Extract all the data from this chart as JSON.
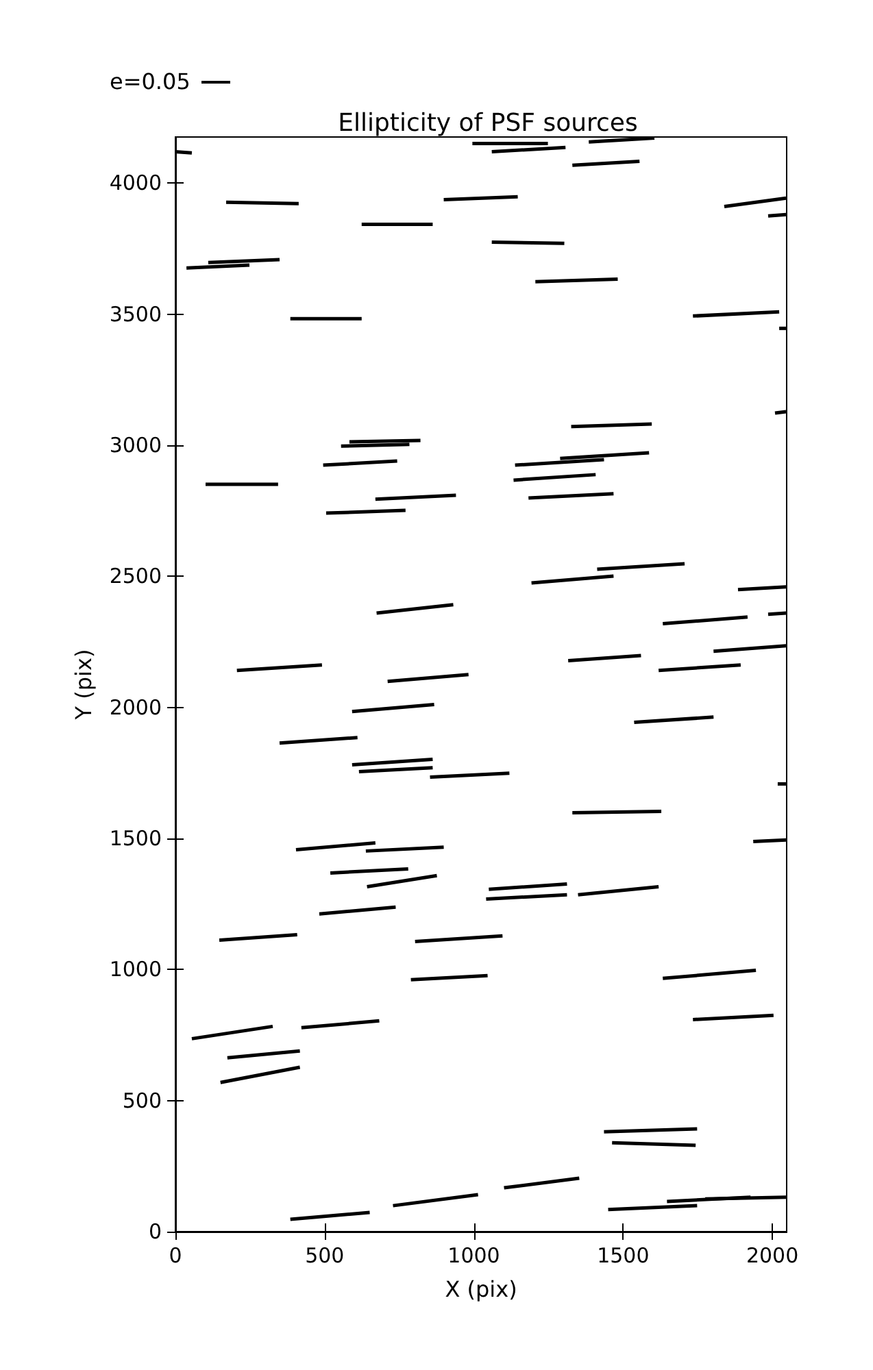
{
  "chart_data": {
    "type": "line",
    "title": "Ellipticity of PSF sources",
    "xlabel": "X (pix)",
    "ylabel": "Y (pix)",
    "annotations": [
      "e=0.05"
    ],
    "xlim": [
      0,
      2048
    ],
    "ylim": [
      0,
      4176
    ],
    "xticks": [
      0,
      500,
      1000,
      1500,
      2000
    ],
    "yticks": [
      0,
      500,
      1000,
      1500,
      2000,
      2500,
      3000,
      3500,
      4000
    ],
    "grid": false,
    "marker": "none",
    "line_style": "solid",
    "series": [
      {
        "color": "#000000",
        "x": [
          0,
          55
        ],
        "values": [
          4120,
          4115
        ]
      },
      {
        "color": "#000000",
        "x": [
          170,
          413
        ],
        "values": [
          3927,
          3922
        ]
      },
      {
        "color": "#000000",
        "x": [
          110,
          349
        ],
        "values": [
          3697,
          3708
        ]
      },
      {
        "color": "#000000",
        "x": [
          37,
          248
        ],
        "values": [
          3676,
          3687
        ]
      },
      {
        "color": "#000000",
        "x": [
          385,
          624
        ],
        "values": [
          3483,
          3483
        ]
      },
      {
        "color": "#000000",
        "x": [
          899,
          1147
        ],
        "values": [
          3937,
          3948
        ]
      },
      {
        "color": "#000000",
        "x": [
          624,
          862
        ],
        "values": [
          3843,
          3843
        ]
      },
      {
        "color": "#000000",
        "x": [
          995,
          1248
        ],
        "values": [
          4151,
          4151
        ]
      },
      {
        "color": "#000000",
        "x": [
          1060,
          1307
        ],
        "values": [
          4120,
          4136
        ]
      },
      {
        "color": "#000000",
        "x": [
          1385,
          1605
        ],
        "values": [
          4157,
          4172
        ]
      },
      {
        "color": "#000000",
        "x": [
          1330,
          1555
        ],
        "values": [
          4068,
          4083
        ]
      },
      {
        "color": "#000000",
        "x": [
          1060,
          1303
        ],
        "values": [
          3775,
          3770
        ]
      },
      {
        "color": "#000000",
        "x": [
          1206,
          1482
        ],
        "values": [
          3624,
          3634
        ]
      },
      {
        "color": "#000000",
        "x": [
          1839,
          2046
        ],
        "values": [
          3911,
          3943
        ]
      },
      {
        "color": "#000000",
        "x": [
          1986,
          2046
        ],
        "values": [
          3875,
          3880
        ]
      },
      {
        "color": "#000000",
        "x": [
          1734,
          2023
        ],
        "values": [
          3493,
          3509
        ]
      },
      {
        "color": "#000000",
        "x": [
          2023,
          2046
        ],
        "values": [
          3446,
          3446
        ]
      },
      {
        "color": "#000000",
        "x": [
          2009,
          2046
        ],
        "values": [
          3123,
          3128
        ]
      },
      {
        "color": "#000000",
        "x": [
          1326,
          1596
        ],
        "values": [
          3071,
          3081
        ]
      },
      {
        "color": "#000000",
        "x": [
          583,
          821
        ],
        "values": [
          3013,
          3018
        ]
      },
      {
        "color": "#000000",
        "x": [
          555,
          784
        ],
        "values": [
          2997,
          3003
        ]
      },
      {
        "color": "#000000",
        "x": [
          495,
          743
        ],
        "values": [
          2924,
          2940
        ]
      },
      {
        "color": "#000000",
        "x": [
          1138,
          1436
        ],
        "values": [
          2924,
          2945
        ]
      },
      {
        "color": "#000000",
        "x": [
          1289,
          1587
        ],
        "values": [
          2950,
          2971
        ]
      },
      {
        "color": "#000000",
        "x": [
          1133,
          1408
        ],
        "values": [
          2867,
          2888
        ]
      },
      {
        "color": "#000000",
        "x": [
          1183,
          1468
        ],
        "values": [
          2799,
          2815
        ]
      },
      {
        "color": "#000000",
        "x": [
          101,
          344
        ],
        "values": [
          2851,
          2851
        ]
      },
      {
        "color": "#000000",
        "x": [
          670,
          940
        ],
        "values": [
          2794,
          2809
        ]
      },
      {
        "color": "#000000",
        "x": [
          505,
          771
        ],
        "values": [
          2741,
          2752
        ]
      },
      {
        "color": "#000000",
        "x": [
          1413,
          1706
        ],
        "values": [
          2527,
          2548
        ]
      },
      {
        "color": "#000000",
        "x": [
          1193,
          1468
        ],
        "values": [
          2475,
          2501
        ]
      },
      {
        "color": "#000000",
        "x": [
          1885,
          2046
        ],
        "values": [
          2449,
          2460
        ]
      },
      {
        "color": "#000000",
        "x": [
          674,
          931
        ],
        "values": [
          2360,
          2392
        ]
      },
      {
        "color": "#000000",
        "x": [
          1986,
          2046
        ],
        "values": [
          2355,
          2360
        ]
      },
      {
        "color": "#000000",
        "x": [
          1633,
          1917
        ],
        "values": [
          2319,
          2345
        ]
      },
      {
        "color": "#000000",
        "x": [
          1316,
          1560
        ],
        "values": [
          2178,
          2198
        ]
      },
      {
        "color": "#000000",
        "x": [
          1803,
          2046
        ],
        "values": [
          2214,
          2235
        ]
      },
      {
        "color": "#000000",
        "x": [
          1619,
          1894
        ],
        "values": [
          2141,
          2162
        ]
      },
      {
        "color": "#000000",
        "x": [
          206,
          491
        ],
        "values": [
          2141,
          2162
        ]
      },
      {
        "color": "#000000",
        "x": [
          711,
          982
        ],
        "values": [
          2099,
          2125
        ]
      },
      {
        "color": "#000000",
        "x": [
          592,
          867
        ],
        "values": [
          1984,
          2011
        ]
      },
      {
        "color": "#000000",
        "x": [
          1537,
          1803
        ],
        "values": [
          1943,
          1963
        ]
      },
      {
        "color": "#000000",
        "x": [
          349,
          610
        ],
        "values": [
          1864,
          1885
        ]
      },
      {
        "color": "#000000",
        "x": [
          592,
          862
        ],
        "values": [
          1781,
          1802
        ]
      },
      {
        "color": "#000000",
        "x": [
          615,
          862
        ],
        "values": [
          1755,
          1770
        ]
      },
      {
        "color": "#000000",
        "x": [
          853,
          1119
        ],
        "values": [
          1734,
          1749
        ]
      },
      {
        "color": "#000000",
        "x": [
          2018,
          2046
        ],
        "values": [
          1708,
          1708
        ]
      },
      {
        "color": "#000000",
        "x": [
          1330,
          1628
        ],
        "values": [
          1598,
          1603
        ]
      },
      {
        "color": "#000000",
        "x": [
          1936,
          2046
        ],
        "values": [
          1488,
          1494
        ]
      },
      {
        "color": "#000000",
        "x": [
          404,
          670
        ],
        "values": [
          1457,
          1483
        ]
      },
      {
        "color": "#000000",
        "x": [
          638,
          899
        ],
        "values": [
          1452,
          1467
        ]
      },
      {
        "color": "#000000",
        "x": [
          519,
          780
        ],
        "values": [
          1368,
          1384
        ]
      },
      {
        "color": "#000000",
        "x": [
          642,
          876
        ],
        "values": [
          1316,
          1358
        ]
      },
      {
        "color": "#000000",
        "x": [
          1050,
          1312
        ],
        "values": [
          1306,
          1326
        ]
      },
      {
        "color": "#000000",
        "x": [
          1041,
          1312
        ],
        "values": [
          1269,
          1285
        ]
      },
      {
        "color": "#000000",
        "x": [
          1349,
          1619
        ],
        "values": [
          1285,
          1316
        ]
      },
      {
        "color": "#000000",
        "x": [
          482,
          738
        ],
        "values": [
          1212,
          1238
        ]
      },
      {
        "color": "#000000",
        "x": [
          147,
          408
        ],
        "values": [
          1112,
          1133
        ]
      },
      {
        "color": "#000000",
        "x": [
          803,
          1096
        ],
        "values": [
          1107,
          1128
        ]
      },
      {
        "color": "#000000",
        "x": [
          789,
          1046
        ],
        "values": [
          961,
          977
        ]
      },
      {
        "color": "#000000",
        "x": [
          1633,
          1945
        ],
        "values": [
          966,
          997
        ]
      },
      {
        "color": "#000000",
        "x": [
          1734,
          2004
        ],
        "values": [
          809,
          825
        ]
      },
      {
        "color": "#000000",
        "x": [
          55,
          326
        ],
        "values": [
          736,
          783
        ]
      },
      {
        "color": "#000000",
        "x": [
          422,
          683
        ],
        "values": [
          778,
          804
        ]
      },
      {
        "color": "#000000",
        "x": [
          174,
          417
        ],
        "values": [
          663,
          689
        ]
      },
      {
        "color": "#000000",
        "x": [
          151,
          417
        ],
        "values": [
          569,
          627
        ]
      },
      {
        "color": "#000000",
        "x": [
          1436,
          1748
        ],
        "values": [
          381,
          392
        ]
      },
      {
        "color": "#000000",
        "x": [
          1463,
          1743
        ],
        "values": [
          339,
          329
        ]
      },
      {
        "color": "#000000",
        "x": [
          1101,
          1353
        ],
        "values": [
          167,
          204
        ]
      },
      {
        "color": "#000000",
        "x": [
          729,
          1014
        ],
        "values": [
          99,
          141
        ]
      },
      {
        "color": "#000000",
        "x": [
          385,
          651
        ],
        "values": [
          47,
          73
        ]
      },
      {
        "color": "#000000",
        "x": [
          1450,
          1748
        ],
        "values": [
          84,
          99
        ]
      },
      {
        "color": "#000000",
        "x": [
          1647,
          1927
        ],
        "values": [
          115,
          131
        ]
      },
      {
        "color": "#000000",
        "x": [
          1775,
          2046
        ],
        "values": [
          125,
          131
        ]
      }
    ]
  }
}
